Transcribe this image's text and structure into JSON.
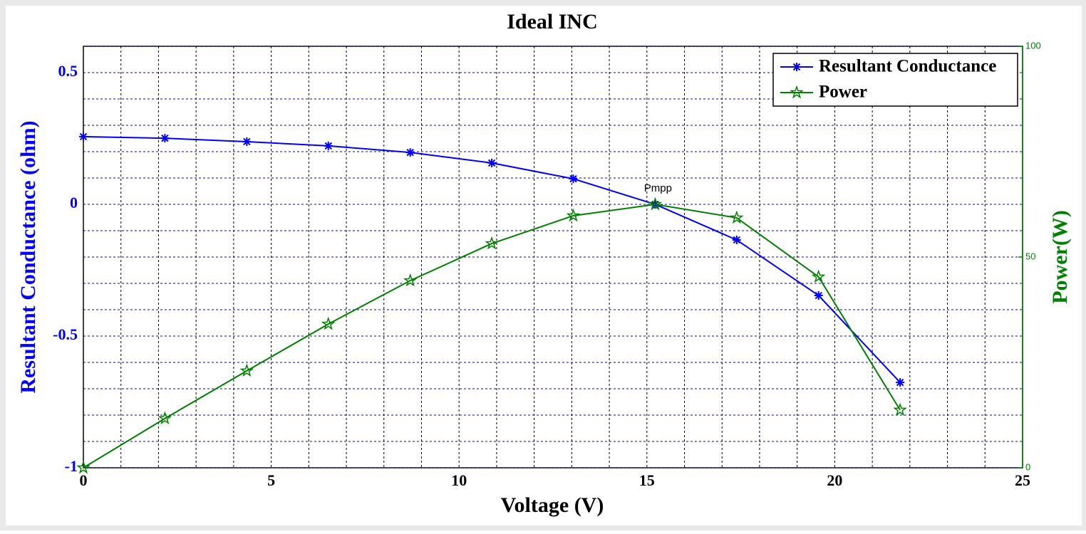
{
  "chart_data": {
    "type": "line",
    "title": "Ideal INC",
    "x_label": "Voltage (V)",
    "y_label": "Resultant Conductance (ohm)",
    "y2_label": "Power(W)",
    "x": [
      0,
      2.17,
      4.35,
      6.52,
      8.7,
      10.87,
      13.04,
      15.22,
      17.39,
      19.57,
      21.74
    ],
    "series": [
      {
        "name": "Resultant Conductance",
        "color": "#0000ff",
        "values": [
          0.257,
          0.251,
          0.238,
          0.222,
          0.197,
          0.157,
          0.097,
          0,
          -0.135,
          -0.346,
          -0.676
        ]
      },
      {
        "name": "Power",
        "color": "#008000",
        "axis": "y2",
        "values": [
          0,
          11.7,
          23.0,
          34.1,
          44.4,
          53.2,
          59.8,
          62.5,
          59.3,
          45.3,
          13.7
        ]
      }
    ],
    "annotation": "Pmpp",
    "xlim": [
      0,
      25
    ],
    "xticks": [
      0,
      5,
      10,
      15,
      20,
      25
    ],
    "ylim": [
      -1,
      0.6
    ],
    "yticks": [
      -1,
      -0.5,
      0,
      0.5
    ],
    "y2lim": [
      0,
      100
    ],
    "y2ticks": [
      0,
      50,
      100
    ],
    "grid": true,
    "legend": "upper right"
  }
}
